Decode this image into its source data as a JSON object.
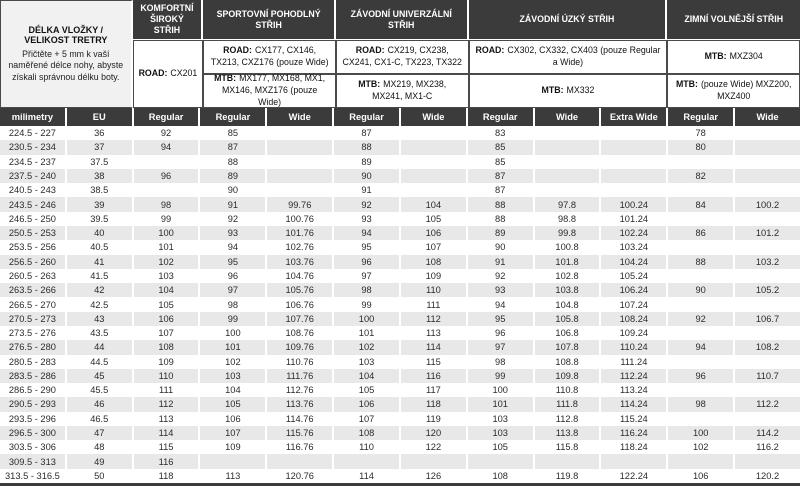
{
  "left_header": {
    "title": "DÉLKA VLOŽKY / VELIKOST TRETRY",
    "description": "Přičtěte + 5 mm k vaší naměřené délce nohy, abyste získali správnou délku boty."
  },
  "categories": [
    {
      "title": "KOMFORTNÍ ŠIROKÝ STŘIH",
      "cells": [
        {
          "label": "ROAD:",
          "models": "CX201"
        }
      ]
    },
    {
      "title": "SPORTOVNÍ POHODLNÝ STŘIH",
      "cells": [
        {
          "label": "ROAD:",
          "models": "CX177, CX146, TX213, CXZ176 (pouze Wide)"
        },
        {
          "label": "MTB:",
          "models": "MX177, MX168, MX1, MX146, MXZ176 (pouze Wide)"
        }
      ]
    },
    {
      "title": "ZÁVODNÍ UNIVERZÁLNÍ STŘIH",
      "cells": [
        {
          "label": "ROAD:",
          "models": "CX219, CX238, CX241, CX1-C, TX223, TX322"
        },
        {
          "label": "MTB:",
          "models": "MX219, MX238, MX241, MX1-C"
        }
      ]
    },
    {
      "title": "ZÁVODNÍ ÚZKÝ STŘIH",
      "cells": [
        {
          "label": "ROAD:",
          "models": "CX302, CX332, CX403 (pouze Regular a Wide)"
        },
        {
          "label": "MTB:",
          "models": "MX332"
        }
      ]
    },
    {
      "title": "ZIMNÍ VOLNĚJŠÍ STŘIH",
      "cells": [
        {
          "label": "MTB:",
          "models": "MXZ304"
        },
        {
          "label": "MTB:",
          "models": "(pouze Wide) MXZ200, MXZ400"
        }
      ]
    }
  ],
  "columns": [
    "milimetry",
    "EU",
    "Regular",
    "Regular",
    "Wide",
    "Regular",
    "Wide",
    "Regular",
    "Wide",
    "Extra Wide",
    "Regular",
    "Wide"
  ],
  "rows": [
    [
      "224.5 - 227",
      "36",
      "92",
      "85",
      "",
      "87",
      "",
      "83",
      "",
      "",
      "78",
      ""
    ],
    [
      "230.5 - 234",
      "37",
      "94",
      "87",
      "",
      "88",
      "",
      "85",
      "",
      "",
      "80",
      ""
    ],
    [
      "234.5 - 237",
      "37.5",
      "",
      "88",
      "",
      "89",
      "",
      "85",
      "",
      "",
      "",
      ""
    ],
    [
      "237.5 - 240",
      "38",
      "96",
      "89",
      "",
      "90",
      "",
      "87",
      "",
      "",
      "82",
      ""
    ],
    [
      "240.5 - 243",
      "38.5",
      "",
      "90",
      "",
      "91",
      "",
      "87",
      "",
      "",
      "",
      ""
    ],
    [
      "243.5 - 246",
      "39",
      "98",
      "91",
      "99.76",
      "92",
      "104",
      "88",
      "97.8",
      "100.24",
      "84",
      "100.2"
    ],
    [
      "246.5 - 250",
      "39.5",
      "99",
      "92",
      "100.76",
      "93",
      "105",
      "88",
      "98.8",
      "101.24",
      "",
      ""
    ],
    [
      "250.5 - 253",
      "40",
      "100",
      "93",
      "101.76",
      "94",
      "106",
      "89",
      "99.8",
      "102.24",
      "86",
      "101.2"
    ],
    [
      "253.5 - 256",
      "40.5",
      "101",
      "94",
      "102.76",
      "95",
      "107",
      "90",
      "100.8",
      "103.24",
      "",
      ""
    ],
    [
      "256.5 - 260",
      "41",
      "102",
      "95",
      "103.76",
      "96",
      "108",
      "91",
      "101.8",
      "104.24",
      "88",
      "103.2"
    ],
    [
      "260.5 - 263",
      "41.5",
      "103",
      "96",
      "104.76",
      "97",
      "109",
      "92",
      "102.8",
      "105.24",
      "",
      ""
    ],
    [
      "263.5 - 266",
      "42",
      "104",
      "97",
      "105.76",
      "98",
      "110",
      "93",
      "103.8",
      "106.24",
      "90",
      "105.2"
    ],
    [
      "266.5 - 270",
      "42.5",
      "105",
      "98",
      "106.76",
      "99",
      "111",
      "94",
      "104.8",
      "107.24",
      "",
      ""
    ],
    [
      "270.5 - 273",
      "43",
      "106",
      "99",
      "107.76",
      "100",
      "112",
      "95",
      "105.8",
      "108.24",
      "92",
      "106.7"
    ],
    [
      "273.5 - 276",
      "43.5",
      "107",
      "100",
      "108.76",
      "101",
      "113",
      "96",
      "106.8",
      "109.24",
      "",
      ""
    ],
    [
      "276.5 - 280",
      "44",
      "108",
      "101",
      "109.76",
      "102",
      "114",
      "97",
      "107.8",
      "110.24",
      "94",
      "108.2"
    ],
    [
      "280.5 - 283",
      "44.5",
      "109",
      "102",
      "110.76",
      "103",
      "115",
      "98",
      "108.8",
      "111.24",
      "",
      ""
    ],
    [
      "283.5 - 286",
      "45",
      "110",
      "103",
      "111.76",
      "104",
      "116",
      "99",
      "109.8",
      "112.24",
      "96",
      "110.7"
    ],
    [
      "286.5 - 290",
      "45.5",
      "111",
      "104",
      "112.76",
      "105",
      "117",
      "100",
      "110.8",
      "113.24",
      "",
      ""
    ],
    [
      "290.5 - 293",
      "46",
      "112",
      "105",
      "113.76",
      "106",
      "118",
      "101",
      "111.8",
      "114.24",
      "98",
      "112.2"
    ],
    [
      "293.5 - 296",
      "46.5",
      "113",
      "106",
      "114.76",
      "107",
      "119",
      "103",
      "112.8",
      "115.24",
      "",
      ""
    ],
    [
      "296.5 - 300",
      "47",
      "114",
      "107",
      "115.76",
      "108",
      "120",
      "103",
      "113.8",
      "116.24",
      "100",
      "114.2"
    ],
    [
      "303.5 - 306",
      "48",
      "115",
      "109",
      "116.76",
      "110",
      "122",
      "105",
      "115.8",
      "118.24",
      "102",
      "116.2"
    ],
    [
      "309.5 - 313",
      "49",
      "116",
      "",
      "",
      "",
      "",
      "",
      "",
      "",
      "",
      ""
    ],
    [
      "313.5 - 316.5",
      "50",
      "118",
      "113",
      "120.76",
      "114",
      "126",
      "108",
      "119.8",
      "122.24",
      "106",
      "120.2"
    ]
  ],
  "colors": {
    "header_dark": "#3b3b3b",
    "row_alt": "#e8e8e8",
    "left_header_bg": "#f1f1f1"
  }
}
